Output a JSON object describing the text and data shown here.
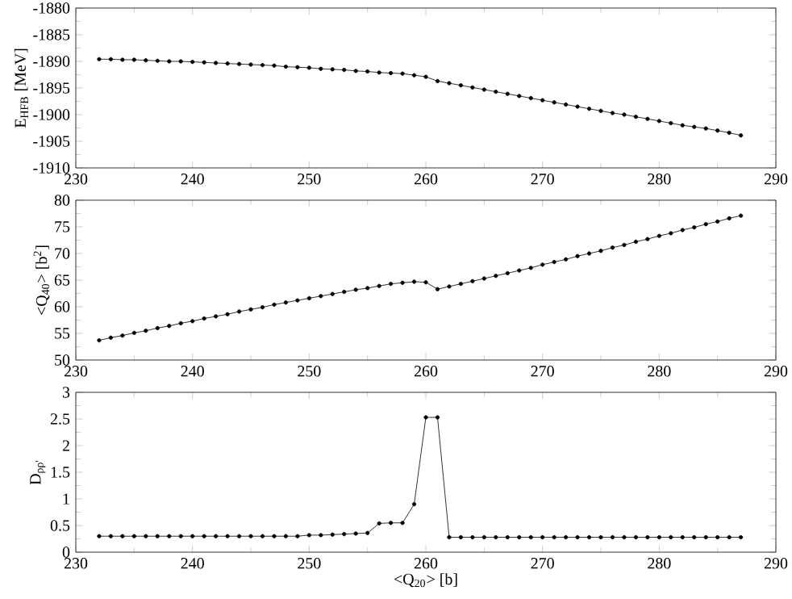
{
  "chart_data": [
    {
      "type": "line",
      "x": [
        232,
        233,
        234,
        235,
        236,
        237,
        238,
        239,
        240,
        241,
        242,
        243,
        244,
        245,
        246,
        247,
        248,
        249,
        250,
        251,
        252,
        253,
        254,
        255,
        256,
        257,
        258,
        259,
        260,
        261,
        262,
        263,
        264,
        265,
        266,
        267,
        268,
        269,
        270,
        271,
        272,
        273,
        274,
        275,
        276,
        277,
        278,
        279,
        280,
        281,
        282,
        283,
        284,
        285,
        286,
        287
      ],
      "series": [
        {
          "color": "#000000",
          "values": [
            -1889.6,
            -1889.6,
            -1889.7,
            -1889.7,
            -1889.8,
            -1889.9,
            -1890.0,
            -1890.0,
            -1890.1,
            -1890.2,
            -1890.3,
            -1890.4,
            -1890.5,
            -1890.6,
            -1890.7,
            -1890.8,
            -1891.0,
            -1891.1,
            -1891.2,
            -1891.4,
            -1891.5,
            -1891.6,
            -1891.8,
            -1891.9,
            -1892.1,
            -1892.2,
            -1892.3,
            -1892.6,
            -1892.9,
            -1893.7,
            -1894.1,
            -1894.5,
            -1894.9,
            -1895.3,
            -1895.7,
            -1896.1,
            -1896.5,
            -1896.9,
            -1897.3,
            -1897.7,
            -1898.1,
            -1898.5,
            -1898.9,
            -1899.3,
            -1899.7,
            -1900.0,
            -1900.4,
            -1900.8,
            -1901.2,
            -1901.6,
            -1902.0,
            -1902.3,
            -1902.6,
            -1903.0,
            -1903.4,
            -1903.9
          ]
        }
      ],
      "ylabel": "E$_{HFB}$ [MeV]",
      "xlim": [
        230,
        290
      ],
      "xticks": [
        230,
        240,
        250,
        260,
        270,
        280,
        290
      ],
      "ylim": [
        -1910,
        -1880
      ],
      "yticks": [
        -1910,
        -1905,
        -1900,
        -1895,
        -1890,
        -1885,
        -1880
      ],
      "marker": "circle"
    },
    {
      "type": "line",
      "x": [
        232,
        233,
        234,
        235,
        236,
        237,
        238,
        239,
        240,
        241,
        242,
        243,
        244,
        245,
        246,
        247,
        248,
        249,
        250,
        251,
        252,
        253,
        254,
        255,
        256,
        257,
        258,
        259,
        260,
        261,
        262,
        263,
        264,
        265,
        266,
        267,
        268,
        269,
        270,
        271,
        272,
        273,
        274,
        275,
        276,
        277,
        278,
        279,
        280,
        281,
        282,
        283,
        284,
        285,
        286,
        287
      ],
      "series": [
        {
          "color": "#000000",
          "values": [
            53.7,
            54.2,
            54.6,
            55.1,
            55.5,
            56.0,
            56.4,
            56.9,
            57.3,
            57.8,
            58.2,
            58.6,
            59.1,
            59.5,
            59.9,
            60.4,
            60.8,
            61.2,
            61.6,
            62.0,
            62.4,
            62.8,
            63.2,
            63.5,
            63.9,
            64.3,
            64.5,
            64.7,
            64.6,
            63.3,
            63.8,
            64.3,
            64.8,
            65.3,
            65.8,
            66.3,
            66.8,
            67.3,
            67.9,
            68.4,
            68.9,
            69.5,
            70.0,
            70.5,
            71.1,
            71.6,
            72.2,
            72.7,
            73.3,
            73.8,
            74.4,
            74.9,
            75.5,
            76.0,
            76.6,
            77.1
          ]
        }
      ],
      "ylabel": "<Q$_{40}$> [b$^{2}$]",
      "xlim": [
        230,
        290
      ],
      "xticks": [
        230,
        240,
        250,
        260,
        270,
        280,
        290
      ],
      "ylim": [
        50,
        80
      ],
      "yticks": [
        50,
        55,
        60,
        65,
        70,
        75,
        80
      ],
      "marker": "circle"
    },
    {
      "type": "line",
      "x": [
        232,
        233,
        234,
        235,
        236,
        237,
        238,
        239,
        240,
        241,
        242,
        243,
        244,
        245,
        246,
        247,
        248,
        249,
        250,
        251,
        252,
        253,
        254,
        255,
        256,
        257,
        258,
        259,
        260,
        261,
        262,
        263,
        264,
        265,
        266,
        267,
        268,
        269,
        270,
        271,
        272,
        273,
        274,
        275,
        276,
        277,
        278,
        279,
        280,
        281,
        282,
        283,
        284,
        285,
        286,
        287
      ],
      "series": [
        {
          "color": "#000000",
          "values": [
            0.3,
            0.3,
            0.3,
            0.3,
            0.3,
            0.3,
            0.3,
            0.3,
            0.3,
            0.3,
            0.3,
            0.3,
            0.3,
            0.3,
            0.3,
            0.3,
            0.3,
            0.3,
            0.32,
            0.32,
            0.33,
            0.34,
            0.35,
            0.36,
            0.54,
            0.55,
            0.55,
            0.9,
            2.53,
            2.53,
            0.28,
            0.28,
            0.28,
            0.28,
            0.28,
            0.28,
            0.28,
            0.28,
            0.28,
            0.28,
            0.28,
            0.28,
            0.28,
            0.28,
            0.28,
            0.28,
            0.28,
            0.28,
            0.28,
            0.28,
            0.28,
            0.28,
            0.28,
            0.28,
            0.28,
            0.28
          ]
        }
      ],
      "xlabel": "<Q$_{20}$> [b]",
      "ylabel": "D$_{ρρ'}$",
      "xlim": [
        230,
        290
      ],
      "xticks": [
        230,
        240,
        250,
        260,
        270,
        280,
        290
      ],
      "ylim": [
        0,
        3
      ],
      "yticks": [
        0,
        0.5,
        1,
        1.5,
        2,
        2.5,
        3
      ],
      "marker": "circle"
    }
  ]
}
